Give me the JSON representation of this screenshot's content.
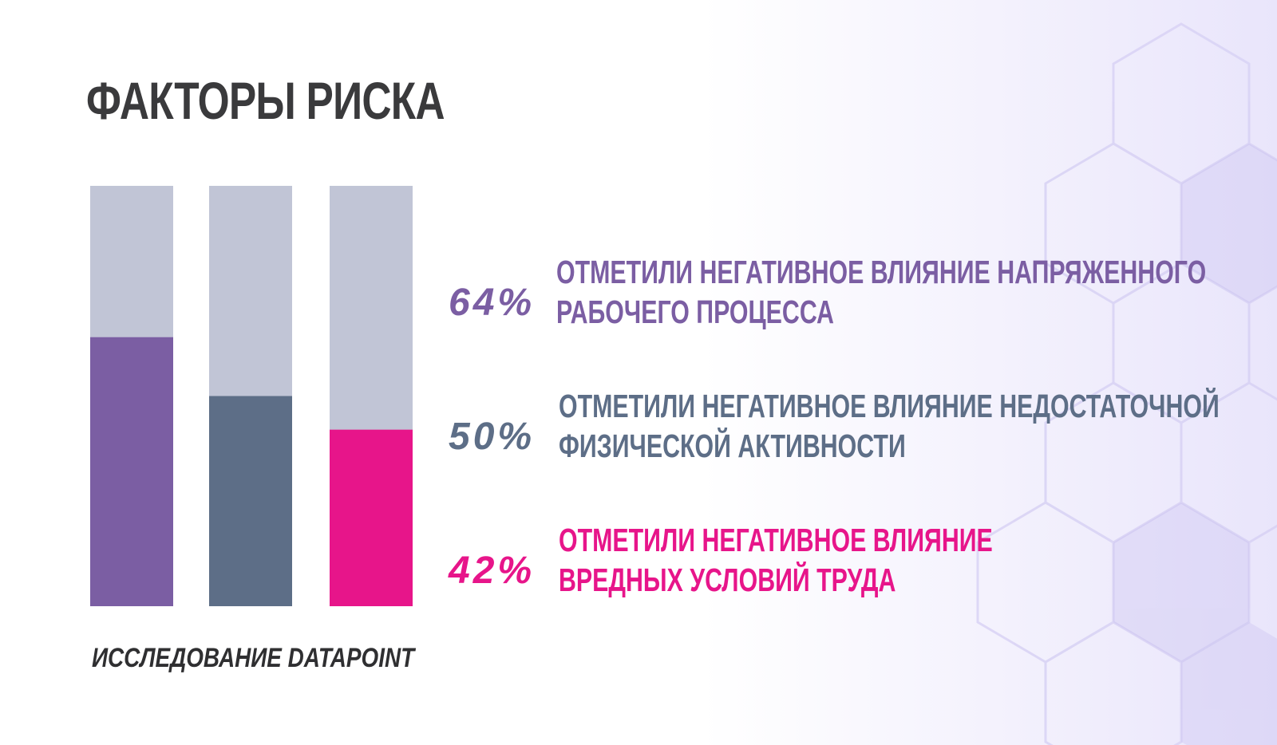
{
  "title": "ФАКТОРЫ РИСКА",
  "source": "ИССЛЕДОВАНИЕ DATAPOINT",
  "colors": {
    "track": "#c1c5d6",
    "purple": "#7b5ea3",
    "slate": "#5d6e87",
    "magenta": "#e7158a",
    "title": "#3a3a3c",
    "background": "#ffffff"
  },
  "chart_data": {
    "type": "bar",
    "ylim": [
      0,
      100
    ],
    "grid": false,
    "series": [
      {
        "value": 64,
        "label": "64%",
        "description": [
          "ОТМЕТИЛИ НЕГАТИВНОЕ ВЛИЯНИЕ НАПРЯЖЕННОГО",
          "РАБОЧЕГО ПРОЦЕССА"
        ],
        "color": "#7b5ea3"
      },
      {
        "value": 50,
        "label": "50%",
        "description": [
          "ОТМЕТИЛИ НЕГАТИВНОЕ ВЛИЯНИЕ НЕДОСТАТОЧНОЙ",
          "ФИЗИЧЕСКОЙ АКТИВНОСТИ"
        ],
        "color": "#5d6e87"
      },
      {
        "value": 42,
        "label": "42%",
        "description": [
          "ОТМЕТИЛИ НЕГАТИВНОЕ ВЛИЯНИЕ",
          "ВРЕДНЫХ УСЛОВИЙ ТРУДА"
        ],
        "color": "#e7158a"
      }
    ]
  }
}
